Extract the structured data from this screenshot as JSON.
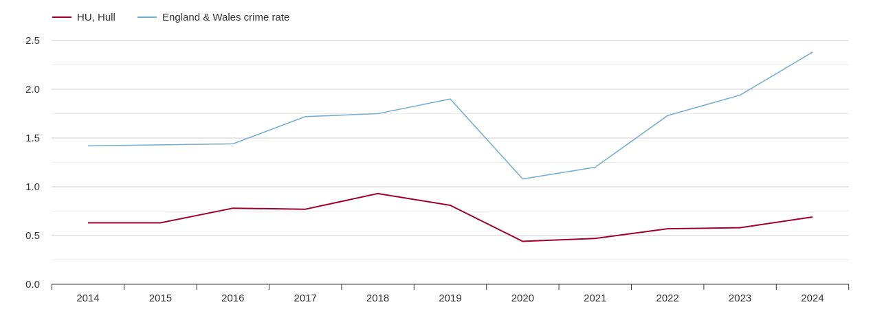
{
  "chart_data": {
    "type": "line",
    "title": "",
    "xlabel": "",
    "ylabel": "",
    "categories": [
      "2014",
      "2015",
      "2016",
      "2017",
      "2018",
      "2019",
      "2020",
      "2021",
      "2022",
      "2023",
      "2024"
    ],
    "ylim": [
      0,
      2.5
    ],
    "yticks": [
      "0.0",
      "0.5",
      "1.0",
      "1.5",
      "2.0",
      "2.5"
    ],
    "grid": true,
    "legend_position": "top-left",
    "series": [
      {
        "name": "HU, Hull",
        "color": "#a0002b",
        "values": [
          0.63,
          0.63,
          0.78,
          0.77,
          0.93,
          0.81,
          0.44,
          0.47,
          0.57,
          0.58,
          0.69
        ]
      },
      {
        "name": "England & Wales crime rate",
        "color": "#7aaed0",
        "values": [
          1.42,
          1.43,
          1.44,
          1.72,
          1.75,
          1.9,
          1.08,
          1.2,
          1.73,
          1.94,
          2.38
        ]
      }
    ]
  }
}
